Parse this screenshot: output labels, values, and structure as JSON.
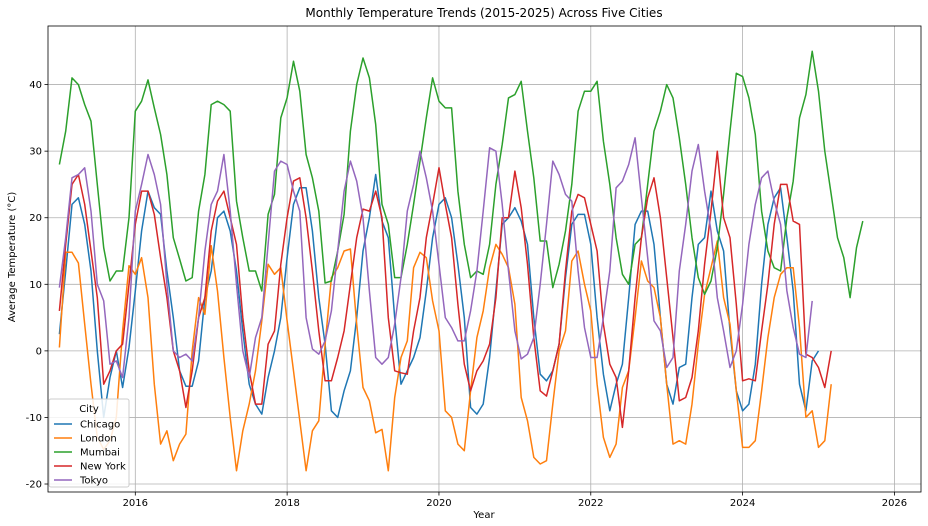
{
  "chart_data": {
    "type": "line",
    "title": "Monthly Temperature Trends (2015-2025) Across Five Cities",
    "xlabel": "Year",
    "ylabel": "Average Temperature (°C)",
    "xlim": [
      2014.85,
      2026.35
    ],
    "ylim": [
      -21.2,
      48.8
    ],
    "xticks": [
      2016,
      2018,
      2020,
      2022,
      2024,
      2026
    ],
    "yticks": [
      -20,
      -10,
      0,
      10,
      20,
      30,
      40
    ],
    "grid": true,
    "legend": {
      "title": "City",
      "position": "lower-left"
    },
    "series": [
      {
        "name": "Chicago",
        "color": "#1f77b4",
        "values": [
          2.5,
          12,
          22,
          23,
          19,
          12,
          0,
          -10,
          -4,
          0,
          -5.5,
          0.5,
          9,
          18,
          24,
          21.5,
          20.5,
          12,
          5,
          -3,
          -5.3,
          -5.3,
          -1.5,
          8,
          12,
          20,
          21,
          18,
          12,
          3,
          -5,
          -8,
          -9.5,
          -4,
          0,
          5,
          14,
          22,
          24.5,
          24.5,
          18,
          8,
          1,
          -9,
          -10,
          -6,
          -3,
          5,
          15,
          20,
          26.5,
          19.5,
          17,
          5,
          -5,
          -3,
          -1,
          2,
          9,
          17,
          22,
          23,
          20,
          13,
          5,
          -8.5,
          -9.5,
          -8,
          -1,
          9,
          19,
          20,
          21.5,
          19.5,
          16,
          5,
          -3.5,
          -4.5,
          -3,
          1,
          11,
          19,
          20.5,
          20.5,
          16,
          5,
          -3.5,
          -9,
          -5,
          -2,
          8,
          19,
          21,
          21,
          16,
          5,
          -5,
          -8,
          -2.5,
          -2,
          8,
          16,
          17,
          24,
          18,
          15,
          3,
          -6,
          -9,
          -8,
          -2,
          10,
          19,
          23,
          24.5,
          17,
          9,
          -5,
          -9,
          -1.5,
          0
        ]
      },
      {
        "name": "London",
        "color": "#ff7f0e",
        "values": [
          0.5,
          14.8,
          14.8,
          13.2,
          4,
          -5,
          -13,
          -14.8,
          -13.5,
          -10,
          3,
          12.8,
          11.5,
          14,
          8,
          -5,
          -14,
          -12,
          -16.5,
          -14,
          -12.5,
          0,
          8,
          5.5,
          15.8,
          9,
          -1,
          -10,
          -18,
          -12,
          -8,
          -3,
          4.5,
          13,
          11.5,
          12.5,
          4.5,
          -3,
          -10.5,
          -18,
          -12,
          -10.5,
          1,
          11,
          12.5,
          15,
          15.3,
          4,
          -5.5,
          -7.5,
          -12.3,
          -11.8,
          -18,
          -7,
          -1,
          1.5,
          12.5,
          14.8,
          14,
          7.5,
          3,
          -9,
          -10,
          -14,
          -15,
          -6,
          2,
          6,
          12.5,
          16,
          14.5,
          12.5,
          7,
          -7,
          -10.5,
          -16,
          -17,
          -16.5,
          -8,
          0,
          3,
          13.5,
          15,
          10,
          6,
          -5,
          -13,
          -16,
          -14,
          -5.5,
          -3,
          5,
          13.5,
          10.5,
          9.5,
          5,
          -5,
          -14,
          -13.5,
          -14,
          -8,
          1,
          8.5,
          12.5,
          16.5,
          8,
          4,
          -6,
          -14.5,
          -14.5,
          -13.5,
          -6,
          2,
          8,
          11.5,
          12.5,
          12.5,
          3.5,
          -10,
          -9,
          -14.5,
          -13.5,
          -5
        ]
      },
      {
        "name": "Mumbai",
        "color": "#2ca02c",
        "values": [
          28,
          33,
          41,
          40,
          37,
          34.5,
          25,
          15.5,
          10.5,
          12,
          12,
          20,
          36,
          37.5,
          40.7,
          36.5,
          32.5,
          26.5,
          17,
          13.8,
          10.5,
          11,
          21,
          26.5,
          37,
          37.5,
          37,
          36,
          22.5,
          17,
          12,
          12,
          9,
          20.5,
          23.5,
          35,
          38,
          43.5,
          39,
          29.5,
          26,
          21,
          10.2,
          10.5,
          15,
          20.5,
          33,
          40,
          44,
          41,
          34,
          22,
          19,
          11,
          11,
          16,
          22,
          28.5,
          35,
          41,
          37.5,
          36.5,
          36.5,
          24,
          16,
          11,
          12,
          11.5,
          16,
          25,
          31,
          38,
          38.5,
          40.5,
          33,
          26,
          16.5,
          16.5,
          9.5,
          13,
          18,
          25,
          36,
          39,
          39,
          40.5,
          31.5,
          25,
          17,
          11.5,
          10,
          16,
          17,
          25,
          33,
          36,
          40,
          38,
          32,
          25,
          17,
          11,
          8.5,
          10.5,
          15.5,
          23.5,
          33,
          41.7,
          41.2,
          38,
          32.5,
          21,
          15,
          12.5,
          12,
          20,
          25.5,
          35,
          38.5,
          45,
          39,
          30,
          23.5,
          17,
          14,
          8,
          15.5,
          19.5
        ]
      },
      {
        "name": "New York",
        "color": "#d62728",
        "values": [
          6,
          16,
          25,
          26.5,
          22,
          15,
          8,
          -5,
          -3,
          0,
          1,
          10,
          19,
          24,
          24,
          20.5,
          14,
          8,
          0,
          -3,
          -8.5,
          -3,
          5,
          8,
          18,
          22.5,
          24,
          20,
          16,
          5,
          -3,
          -8,
          -8,
          1,
          3,
          13,
          20,
          25.5,
          26,
          20,
          12,
          3,
          -4.5,
          -4.5,
          -1,
          3,
          10,
          17,
          21.3,
          21,
          24,
          20,
          5,
          -3,
          -3.3,
          -3.5,
          3,
          8,
          17,
          22,
          27.5,
          22,
          17,
          7,
          -2,
          -6,
          -3,
          -1.5,
          1,
          8,
          20,
          20,
          27,
          21.5,
          13,
          2,
          -6,
          -6.8,
          -3,
          1,
          12,
          21,
          23.5,
          23,
          19,
          15,
          4,
          -2,
          -4,
          -11.5,
          -3,
          8,
          17,
          23,
          26,
          20,
          11,
          2,
          -7.5,
          -7,
          -4,
          3,
          13,
          21,
          30,
          20,
          17,
          7,
          -4.5,
          -4.2,
          -4.5,
          3,
          10,
          19,
          25,
          25,
          19.5,
          19,
          -0.5,
          -1,
          -2.5,
          -5.5,
          0
        ]
      },
      {
        "name": "Tokyo",
        "color": "#9467bd",
        "values": [
          9.5,
          17,
          26,
          26.5,
          27.5,
          21,
          10,
          7.5,
          -2,
          -1.5,
          -4,
          5,
          21,
          25,
          29.5,
          26.5,
          22,
          10,
          0,
          -1,
          -0.5,
          -1.5,
          5,
          15,
          22,
          24,
          29.5,
          21,
          10,
          0,
          -4,
          2,
          5,
          16,
          27,
          28.5,
          28,
          24,
          21,
          5,
          0.3,
          -0.5,
          1.5,
          6,
          15,
          24,
          28.5,
          25.5,
          20,
          9,
          -1,
          -2,
          -1,
          4,
          11,
          21,
          25,
          30,
          26,
          21,
          13,
          5,
          3.5,
          1.5,
          1.5,
          6,
          12,
          21,
          30.5,
          30,
          22,
          12,
          3,
          -1.2,
          -0.5,
          2,
          10,
          19,
          28.5,
          26.5,
          23.5,
          22.5,
          12,
          3.5,
          -1,
          -1,
          5,
          12,
          24.5,
          25.5,
          28,
          32,
          23,
          14,
          4.5,
          3,
          -2.5,
          -1,
          12,
          19,
          27,
          31,
          24,
          18,
          8,
          3,
          -2.5,
          0,
          7,
          16,
          22,
          26,
          27,
          22.5,
          19,
          9,
          3.5,
          -0.5,
          -1,
          7.5
        ]
      }
    ]
  }
}
